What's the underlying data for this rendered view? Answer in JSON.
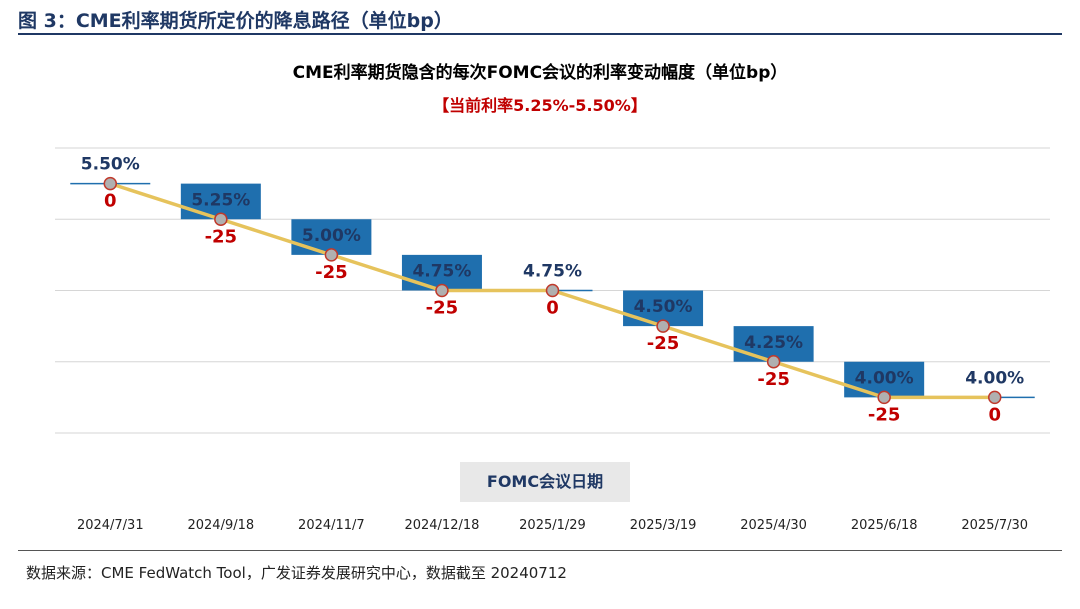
{
  "figure_title": "图 3：CME利率期货所定价的降息路径（单位bp）",
  "source_note": "数据来源：CME FedWatch Tool，广发证券发展研究中心，数据截至 20240712",
  "chart_data": {
    "type": "bar",
    "title": "CME利率期货隐含的每次FOMC会议的利率变动幅度（单位bp）",
    "subtitle": "【当前利率5.25%-5.50%】",
    "xlabel": "FOMC会议日期",
    "categories": [
      "2024/7/31",
      "2024/9/18",
      "2024/11/7",
      "2024/12/18",
      "2025/1/29",
      "2025/3/19",
      "2025/4/30",
      "2025/6/18",
      "2025/7/30"
    ],
    "changes_bp": [
      0,
      -25,
      -25,
      -25,
      0,
      -25,
      -25,
      -25,
      0
    ],
    "change_labels": [
      "0",
      "-25",
      "-25",
      "-25",
      "0",
      "-25",
      "-25",
      "-25",
      "0"
    ],
    "rate_upper_pct": [
      5.5,
      5.25,
      5.0,
      4.75,
      4.75,
      4.5,
      4.25,
      4.0,
      4.0
    ],
    "rate_labels": [
      "5.50%",
      "5.25%",
      "5.00%",
      "4.75%",
      "4.75%",
      "4.50%",
      "4.25%",
      "4.00%",
      "4.00%"
    ],
    "grid": true,
    "colors": {
      "bar": "#1f6fae",
      "line": "#e6c35c",
      "marker": "#b0b0b0",
      "marker_edge": "#c0392b",
      "rate_label": "#1f3864",
      "change_label": "#c00000"
    }
  }
}
